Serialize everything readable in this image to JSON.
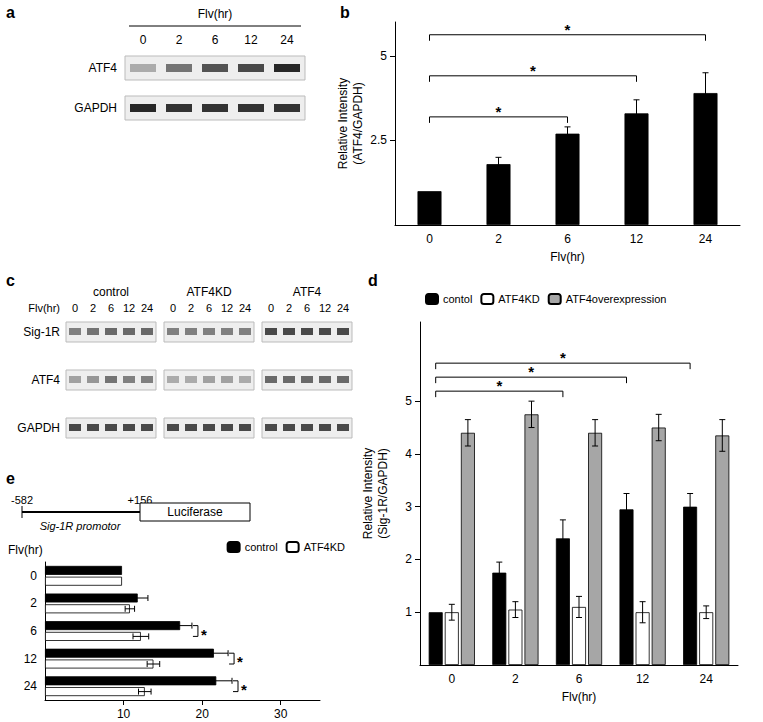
{
  "chart_data": [
    {
      "panel": "a",
      "type": "blot",
      "title": "Flv(hr)",
      "lanes": [
        "0",
        "2",
        "6",
        "12",
        "24"
      ],
      "rows": [
        {
          "name": "ATF4",
          "intensity": [
            0.3,
            0.55,
            0.7,
            0.75,
            0.9
          ]
        },
        {
          "name": "GAPDH",
          "intensity": [
            0.9,
            0.85,
            0.85,
            0.85,
            0.85
          ]
        }
      ]
    },
    {
      "panel": "b",
      "type": "bar",
      "categories": [
        "0",
        "2",
        "6",
        "12",
        "24"
      ],
      "values": [
        1,
        1.8,
        2.7,
        3.3,
        3.9
      ],
      "errors": [
        0,
        0.2,
        0.2,
        0.4,
        0.6
      ],
      "color": "#000000",
      "x_label": "Flv(hr)",
      "y_label": [
        "Relative Intensity",
        "(ATF4/GAPDH)"
      ],
      "ylim": [
        0,
        6
      ],
      "yticks": [
        2.5,
        5
      ],
      "grid": false,
      "significance": [
        {
          "from": "0",
          "to": "6",
          "label": "*"
        },
        {
          "from": "0",
          "to": "12",
          "label": "*"
        },
        {
          "from": "0",
          "to": "24",
          "label": "*"
        }
      ]
    },
    {
      "panel": "c",
      "type": "blot",
      "title": "Flv(hr)",
      "groups": [
        "control",
        "ATF4KD",
        "ATF4"
      ],
      "lanes": [
        "0",
        "2",
        "6",
        "12",
        "24"
      ],
      "rows": [
        {
          "name": "Sig-1R",
          "intensity": [
            [
              0.5,
              0.55,
              0.6,
              0.6,
              0.6
            ],
            [
              0.5,
              0.5,
              0.5,
              0.5,
              0.5
            ],
            [
              0.75,
              0.75,
              0.75,
              0.75,
              0.75
            ]
          ]
        },
        {
          "name": "ATF4",
          "intensity": [
            [
              0.35,
              0.4,
              0.55,
              0.5,
              0.5
            ],
            [
              0.3,
              0.3,
              0.35,
              0.35,
              0.3
            ],
            [
              0.6,
              0.6,
              0.6,
              0.6,
              0.6
            ]
          ]
        },
        {
          "name": "GAPDH",
          "intensity": [
            [
              0.75,
              0.75,
              0.75,
              0.75,
              0.75
            ],
            [
              0.75,
              0.75,
              0.75,
              0.75,
              0.75
            ],
            [
              0.75,
              0.75,
              0.75,
              0.75,
              0.75
            ]
          ]
        }
      ]
    },
    {
      "panel": "d",
      "type": "bar",
      "categories": [
        "0",
        "2",
        "6",
        "12",
        "24"
      ],
      "series": [
        {
          "name": "contol",
          "color": "#000000",
          "values": [
            1,
            1.75,
            2.4,
            2.95,
            3.0
          ],
          "errors": [
            0,
            0.2,
            0.35,
            0.3,
            0.25
          ]
        },
        {
          "name": "ATF4KD",
          "color": "#ffffff",
          "values": [
            1,
            1.05,
            1.1,
            1.0,
            1.0
          ],
          "errors": [
            0.15,
            0.15,
            0.2,
            0.2,
            0.12
          ]
        },
        {
          "name": "ATF4overexpression",
          "color": "#a6a6a6",
          "values": [
            4.4,
            4.75,
            4.4,
            4.5,
            4.35
          ],
          "errors": [
            0.25,
            0.25,
            0.25,
            0.25,
            0.3
          ]
        }
      ],
      "x_label": "Flv(hr)",
      "y_label": [
        "Relative Intensity",
        "(Sig-1R/GAPDH)"
      ],
      "ylim": [
        0,
        6.5
      ],
      "yticks": [
        1,
        2,
        3,
        4,
        5
      ],
      "grid": false,
      "legend": "top",
      "significance": [
        {
          "from": "0",
          "to": "6",
          "label": "*"
        },
        {
          "from": "0",
          "to": "12",
          "label": "*"
        },
        {
          "from": "0",
          "to": "24",
          "label": "*"
        }
      ]
    },
    {
      "panel": "e",
      "type": "bar",
      "orientation": "horizontal",
      "construct": {
        "start": "-582",
        "end": "+156",
        "promoter": "Sig-1R promotor",
        "reporter": "Luciferase"
      },
      "categories": [
        "0",
        "2",
        "6",
        "12",
        "24"
      ],
      "series": [
        {
          "name": "control",
          "color": "#000000",
          "values": [
            9.8,
            11.8,
            17.2,
            21.5,
            21.8
          ],
          "errors": [
            0,
            1.3,
            1.5,
            1.8,
            2.0
          ]
        },
        {
          "name": "ATF4KD",
          "color": "#ffffff",
          "values": [
            9.8,
            10.8,
            12.2,
            13.8,
            12.7
          ],
          "errors": [
            0,
            0.6,
            1.0,
            0.8,
            0.8
          ]
        }
      ],
      "y_label": "Flv(hr)",
      "xlim": [
        0,
        35
      ],
      "xticks": [
        10,
        20,
        30
      ],
      "grid": false,
      "legend": "top-right",
      "significance": [
        {
          "category": "6",
          "label": "*"
        },
        {
          "category": "12",
          "label": "*"
        },
        {
          "category": "24",
          "label": "*"
        }
      ]
    }
  ]
}
